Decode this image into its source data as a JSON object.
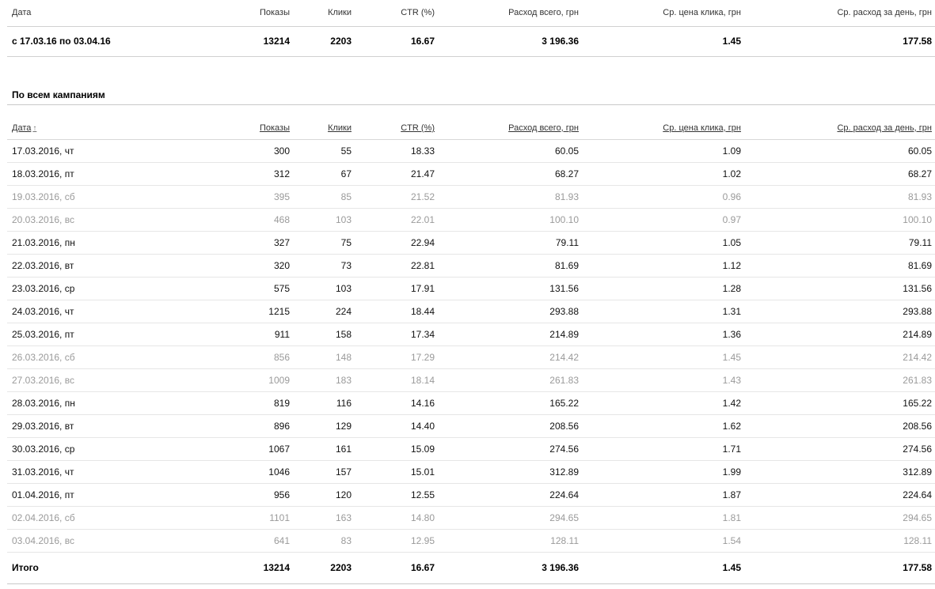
{
  "headers": {
    "date": "Дата",
    "impressions": "Показы",
    "clicks": "Клики",
    "ctr": "CTR (%)",
    "spend_total": "Расход всего, грн",
    "avg_cpc": "Ср. цена клика, грн",
    "avg_daily_spend": "Ср. расход за день, грн"
  },
  "summary": {
    "period": "с 17.03.16 по 03.04.16",
    "impressions": "13214",
    "clicks": "2203",
    "ctr": "16.67",
    "spend_total": "3 196.36",
    "avg_cpc": "1.45",
    "avg_daily_spend": "177.58"
  },
  "section_title": "По всем кампаниям",
  "sort_indicator": "↑",
  "rows": [
    {
      "date": "17.03.2016, чт",
      "impressions": "300",
      "clicks": "55",
      "ctr": "18.33",
      "spend": "60.05",
      "cpc": "1.09",
      "daily": "60.05",
      "weekend": false
    },
    {
      "date": "18.03.2016, пт",
      "impressions": "312",
      "clicks": "67",
      "ctr": "21.47",
      "spend": "68.27",
      "cpc": "1.02",
      "daily": "68.27",
      "weekend": false
    },
    {
      "date": "19.03.2016, сб",
      "impressions": "395",
      "clicks": "85",
      "ctr": "21.52",
      "spend": "81.93",
      "cpc": "0.96",
      "daily": "81.93",
      "weekend": true
    },
    {
      "date": "20.03.2016, вс",
      "impressions": "468",
      "clicks": "103",
      "ctr": "22.01",
      "spend": "100.10",
      "cpc": "0.97",
      "daily": "100.10",
      "weekend": true
    },
    {
      "date": "21.03.2016, пн",
      "impressions": "327",
      "clicks": "75",
      "ctr": "22.94",
      "spend": "79.11",
      "cpc": "1.05",
      "daily": "79.11",
      "weekend": false
    },
    {
      "date": "22.03.2016, вт",
      "impressions": "320",
      "clicks": "73",
      "ctr": "22.81",
      "spend": "81.69",
      "cpc": "1.12",
      "daily": "81.69",
      "weekend": false
    },
    {
      "date": "23.03.2016, ср",
      "impressions": "575",
      "clicks": "103",
      "ctr": "17.91",
      "spend": "131.56",
      "cpc": "1.28",
      "daily": "131.56",
      "weekend": false
    },
    {
      "date": "24.03.2016, чт",
      "impressions": "1215",
      "clicks": "224",
      "ctr": "18.44",
      "spend": "293.88",
      "cpc": "1.31",
      "daily": "293.88",
      "weekend": false
    },
    {
      "date": "25.03.2016, пт",
      "impressions": "911",
      "clicks": "158",
      "ctr": "17.34",
      "spend": "214.89",
      "cpc": "1.36",
      "daily": "214.89",
      "weekend": false
    },
    {
      "date": "26.03.2016, сб",
      "impressions": "856",
      "clicks": "148",
      "ctr": "17.29",
      "spend": "214.42",
      "cpc": "1.45",
      "daily": "214.42",
      "weekend": true
    },
    {
      "date": "27.03.2016, вс",
      "impressions": "1009",
      "clicks": "183",
      "ctr": "18.14",
      "spend": "261.83",
      "cpc": "1.43",
      "daily": "261.83",
      "weekend": true
    },
    {
      "date": "28.03.2016, пн",
      "impressions": "819",
      "clicks": "116",
      "ctr": "14.16",
      "spend": "165.22",
      "cpc": "1.42",
      "daily": "165.22",
      "weekend": false
    },
    {
      "date": "29.03.2016, вт",
      "impressions": "896",
      "clicks": "129",
      "ctr": "14.40",
      "spend": "208.56",
      "cpc": "1.62",
      "daily": "208.56",
      "weekend": false
    },
    {
      "date": "30.03.2016, ср",
      "impressions": "1067",
      "clicks": "161",
      "ctr": "15.09",
      "spend": "274.56",
      "cpc": "1.71",
      "daily": "274.56",
      "weekend": false
    },
    {
      "date": "31.03.2016, чт",
      "impressions": "1046",
      "clicks": "157",
      "ctr": "15.01",
      "spend": "312.89",
      "cpc": "1.99",
      "daily": "312.89",
      "weekend": false
    },
    {
      "date": "01.04.2016, пт",
      "impressions": "956",
      "clicks": "120",
      "ctr": "12.55",
      "spend": "224.64",
      "cpc": "1.87",
      "daily": "224.64",
      "weekend": false
    },
    {
      "date": "02.04.2016, сб",
      "impressions": "1101",
      "clicks": "163",
      "ctr": "14.80",
      "spend": "294.65",
      "cpc": "1.81",
      "daily": "294.65",
      "weekend": true
    },
    {
      "date": "03.04.2016, вс",
      "impressions": "641",
      "clicks": "83",
      "ctr": "12.95",
      "spend": "128.11",
      "cpc": "1.54",
      "daily": "128.11",
      "weekend": true
    }
  ],
  "total": {
    "label": "Итого",
    "impressions": "13214",
    "clicks": "2203",
    "ctr": "16.67",
    "spend_total": "3 196.36",
    "avg_cpc": "1.45",
    "avg_daily_spend": "177.58"
  }
}
